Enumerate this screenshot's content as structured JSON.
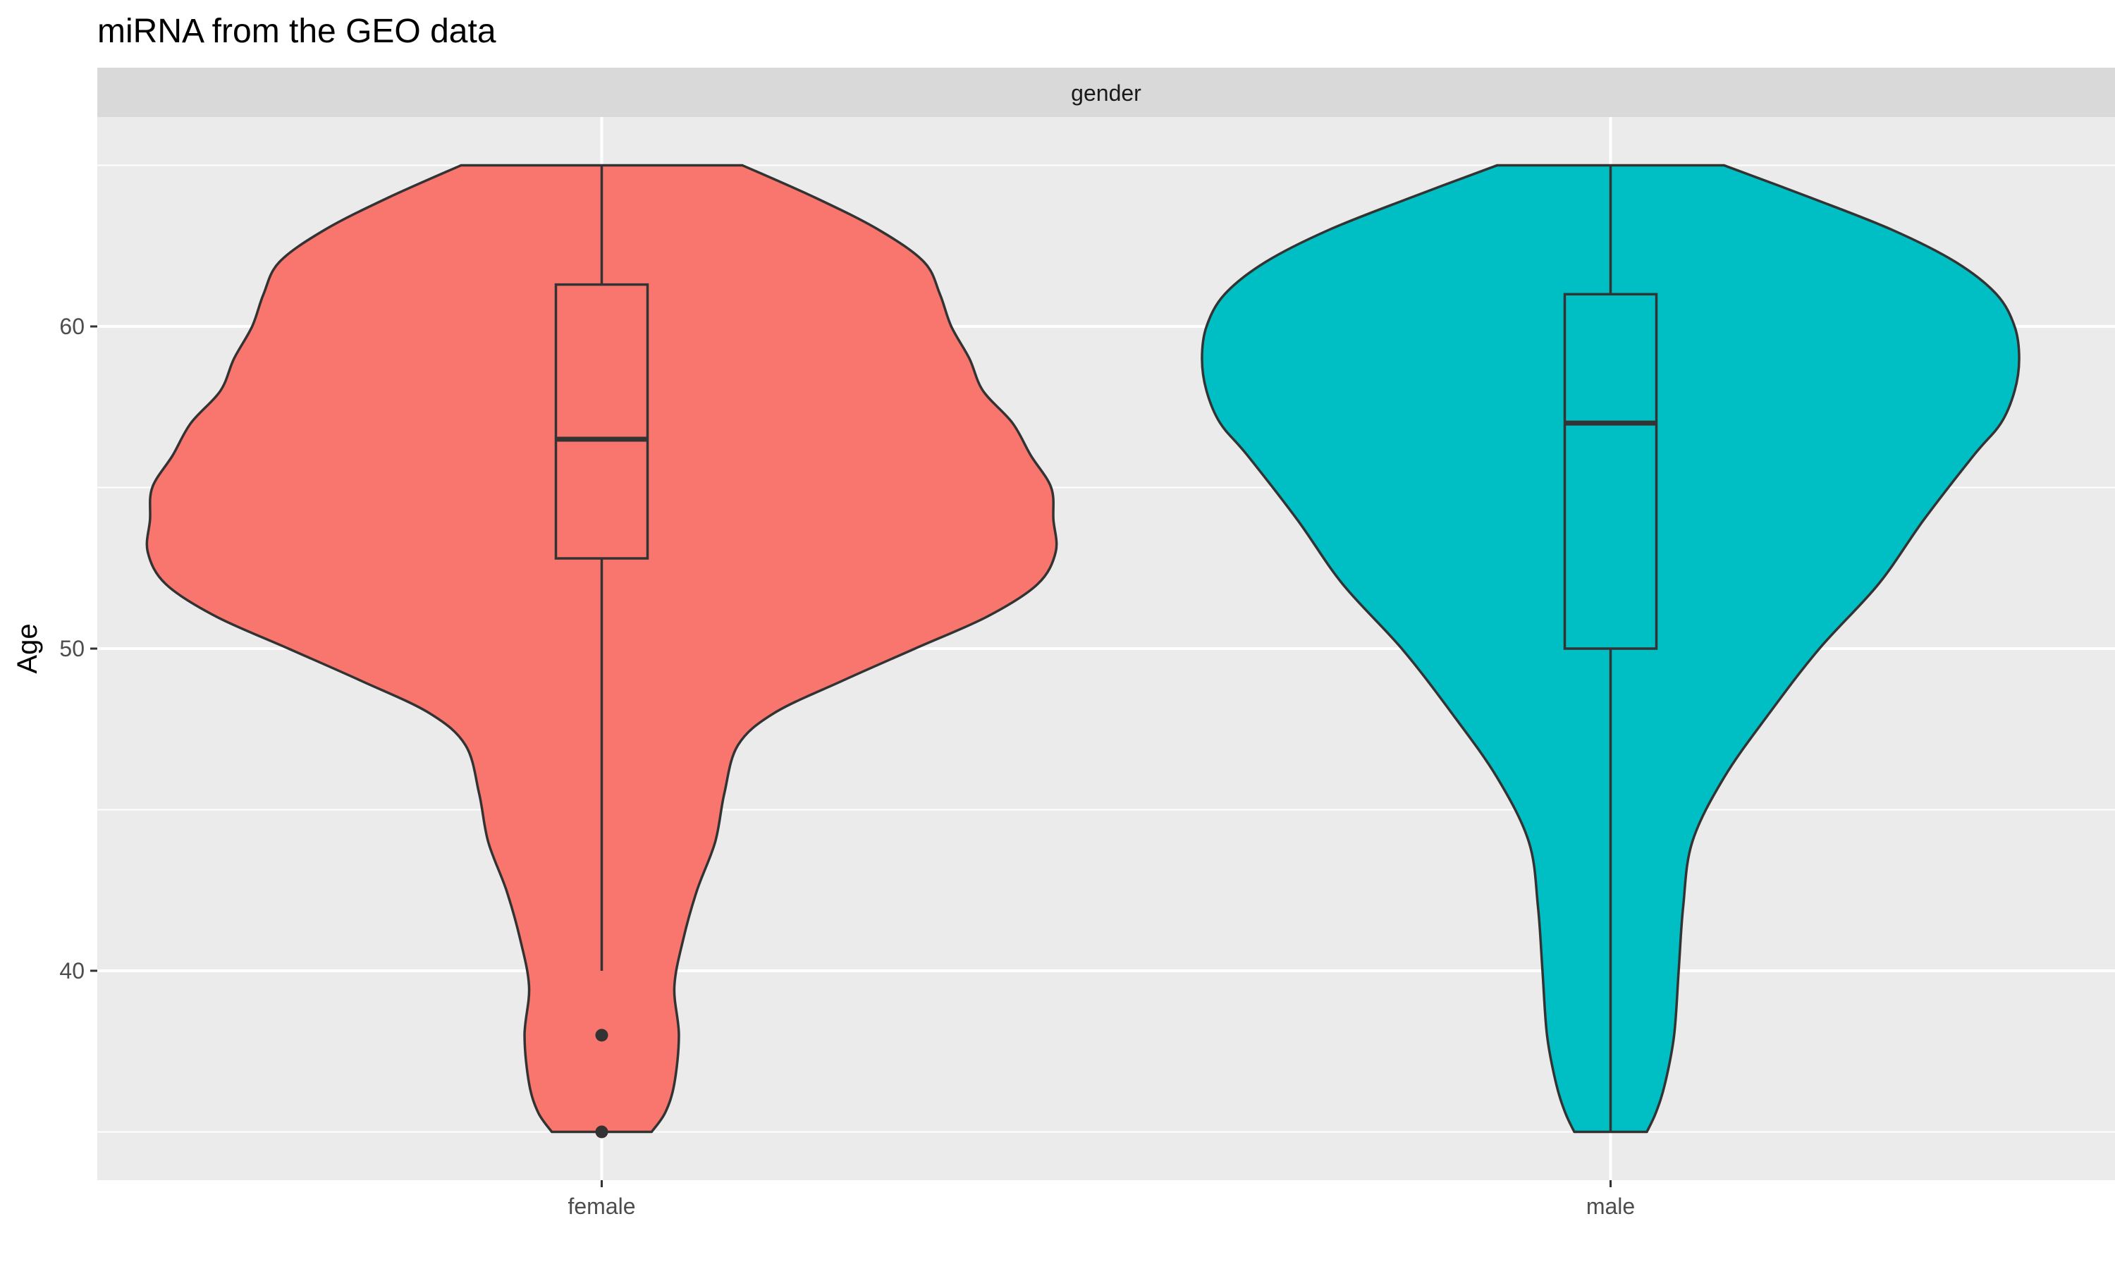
{
  "chart_data": {
    "type": "violin",
    "title": "miRNA from the GEO data",
    "facet_label": "gender",
    "xlabel": "",
    "ylabel": "Age",
    "ylim": [
      33.5,
      66.5
    ],
    "yticks": [
      40,
      50,
      60
    ],
    "grid": true,
    "legend": "none",
    "categories": [
      "female",
      "male"
    ],
    "series": [
      {
        "category": "female",
        "color": "#F8766D",
        "box": {
          "whisker_low": 40,
          "q1": 52.8,
          "median": 56.5,
          "q3": 61.3,
          "whisker_high": 65
        },
        "outliers": [
          38,
          35
        ],
        "density_profile": [
          [
            35,
            0.11
          ],
          [
            35.6,
            0.14
          ],
          [
            36.5,
            0.16
          ],
          [
            38,
            0.17
          ],
          [
            39.5,
            0.16
          ],
          [
            41,
            0.18
          ],
          [
            42.5,
            0.21
          ],
          [
            44,
            0.25
          ],
          [
            45.5,
            0.27
          ],
          [
            47,
            0.3
          ],
          [
            48,
            0.38
          ],
          [
            49,
            0.53
          ],
          [
            50,
            0.69
          ],
          [
            51,
            0.85
          ],
          [
            52,
            0.96
          ],
          [
            53,
            1.0
          ],
          [
            54,
            0.995
          ],
          [
            55,
            0.99
          ],
          [
            56,
            0.945
          ],
          [
            57,
            0.905
          ],
          [
            58,
            0.84
          ],
          [
            59,
            0.81
          ],
          [
            60,
            0.77
          ],
          [
            61,
            0.745
          ],
          [
            62,
            0.71
          ],
          [
            63,
            0.61
          ],
          [
            64,
            0.47
          ],
          [
            65,
            0.31
          ]
        ]
      },
      {
        "category": "male",
        "color": "#00BFC4",
        "box": {
          "whisker_low": 35,
          "q1": 50,
          "median": 57,
          "q3": 61,
          "whisker_high": 65
        },
        "outliers": [],
        "density_profile": [
          [
            35,
            0.08
          ],
          [
            35.6,
            0.1
          ],
          [
            36.5,
            0.12
          ],
          [
            38,
            0.14
          ],
          [
            40,
            0.15
          ],
          [
            42,
            0.16
          ],
          [
            44,
            0.18
          ],
          [
            46,
            0.25
          ],
          [
            48,
            0.35
          ],
          [
            50,
            0.46
          ],
          [
            52,
            0.59
          ],
          [
            54,
            0.69
          ],
          [
            56,
            0.8
          ],
          [
            57,
            0.86
          ],
          [
            58,
            0.89
          ],
          [
            59,
            0.9
          ],
          [
            60,
            0.89
          ],
          [
            61,
            0.85
          ],
          [
            62,
            0.76
          ],
          [
            63,
            0.62
          ],
          [
            64,
            0.44
          ],
          [
            65,
            0.25
          ]
        ]
      }
    ]
  }
}
